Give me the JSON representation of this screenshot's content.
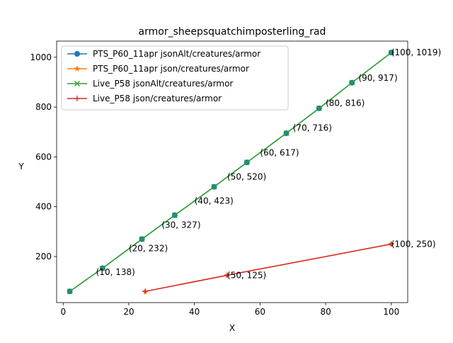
{
  "chart_data": {
    "type": "line",
    "title": "armor_sheepsquatchimposterling_rad",
    "xlabel": "X",
    "ylabel": "Y",
    "xlim": [
      -2,
      105
    ],
    "ylim": [
      15,
      1065
    ],
    "xticks": [
      0,
      20,
      40,
      60,
      80,
      100
    ],
    "yticks": [
      200,
      400,
      600,
      800,
      1000
    ],
    "grid": false,
    "legend_position": "top-left",
    "series": [
      {
        "name": "PTS_P60_11apr jsonAlt/creatures/armor",
        "color": "#1f77b4",
        "marker": "circle",
        "x": [
          2,
          12,
          24,
          34,
          46,
          56,
          68,
          78,
          88,
          100
        ],
        "y": [
          60,
          153,
          270,
          366,
          480,
          578,
          695,
          795,
          898,
          1019
        ]
      },
      {
        "name": "PTS_P60_11apr json/creatures/armor",
        "color": "#ff7f0e",
        "marker": "star",
        "x": [
          25,
          50,
          100
        ],
        "y": [
          60,
          125,
          250
        ]
      },
      {
        "name": "Live_P58 jsonAlt/creatures/armor",
        "color": "#2ca02c",
        "marker": "x",
        "x": [
          2,
          12,
          24,
          34,
          46,
          56,
          68,
          78,
          88,
          100
        ],
        "y": [
          60,
          153,
          270,
          366,
          480,
          578,
          695,
          795,
          898,
          1019
        ]
      },
      {
        "name": "Live_P58 json/creatures/armor",
        "color": "#d62728",
        "marker": "plus",
        "x": [
          25,
          50,
          100
        ],
        "y": [
          60,
          125,
          250
        ]
      }
    ],
    "annotations": [
      {
        "x": 10,
        "y": 138,
        "text": "(10, 138)"
      },
      {
        "x": 20,
        "y": 232,
        "text": "(20, 232)"
      },
      {
        "x": 30,
        "y": 327,
        "text": "(30, 327)"
      },
      {
        "x": 40,
        "y": 423,
        "text": "(40, 423)"
      },
      {
        "x": 50,
        "y": 520,
        "text": "(50, 520)"
      },
      {
        "x": 60,
        "y": 617,
        "text": "(60, 617)"
      },
      {
        "x": 70,
        "y": 716,
        "text": "(70, 716)"
      },
      {
        "x": 80,
        "y": 816,
        "text": "(80, 816)"
      },
      {
        "x": 90,
        "y": 917,
        "text": "(90, 917)"
      },
      {
        "x": 100,
        "y": 1019,
        "text": "(100, 1019)"
      },
      {
        "x": 50,
        "y": 125,
        "text": "(50, 125)"
      },
      {
        "x": 100,
        "y": 250,
        "text": "(100, 250)"
      }
    ]
  }
}
